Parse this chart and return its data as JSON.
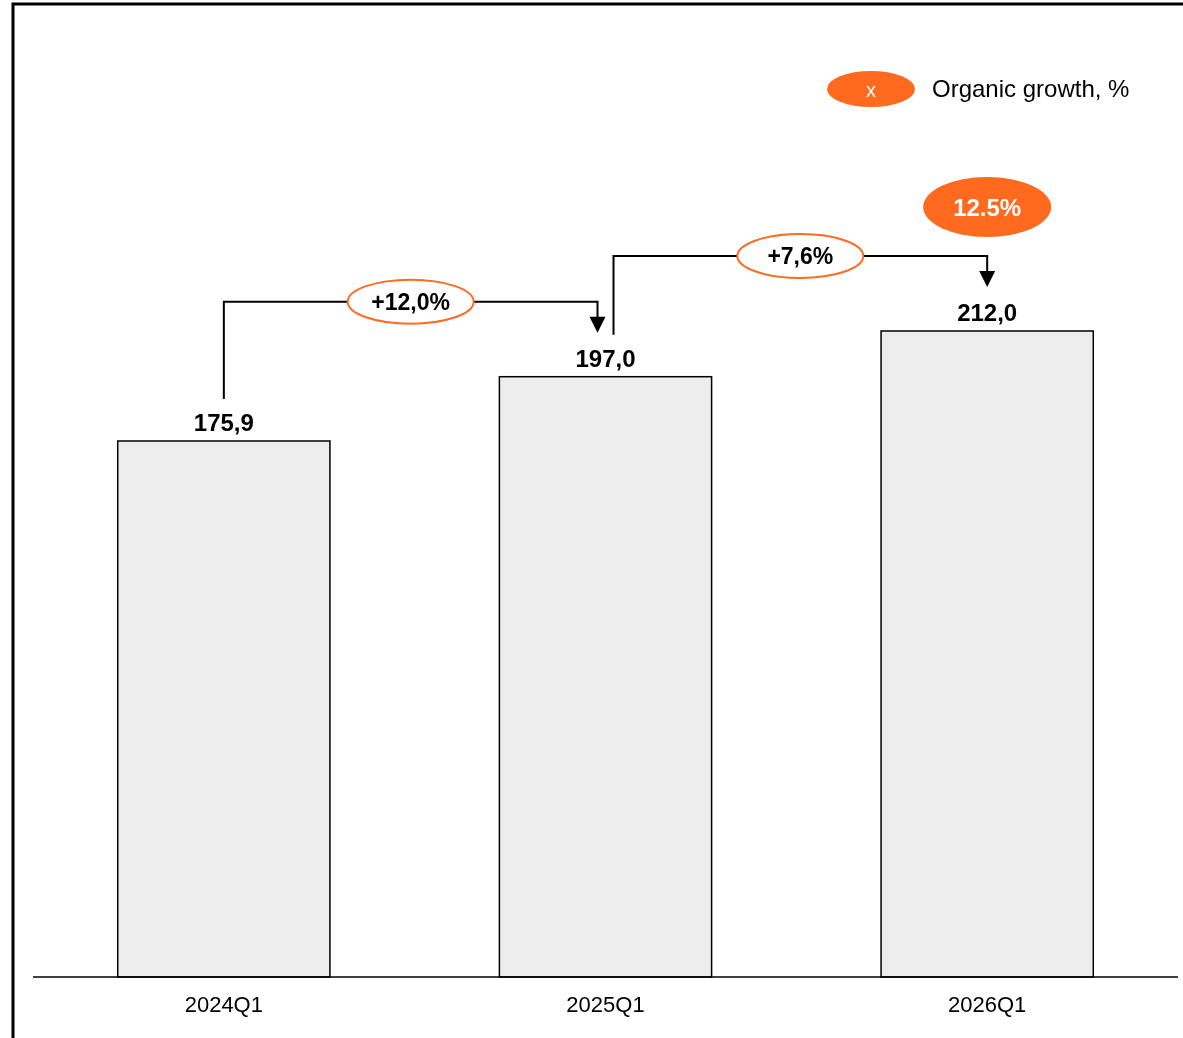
{
  "chart_data": {
    "type": "bar",
    "categories": [
      "2024Q1",
      "2025Q1",
      "2026Q1"
    ],
    "values": [
      175.9,
      197.0,
      212.0
    ],
    "color": "#ededed",
    "value_labels": [
      "175,9",
      "197,0",
      "212,0"
    ],
    "annotations": [
      "+12,0%",
      "+7,6%",
      "12.5%",
      "x",
      "Organic growth, %"
    ]
  }
}
